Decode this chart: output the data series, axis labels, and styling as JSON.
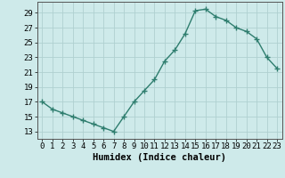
{
  "x": [
    0,
    1,
    2,
    3,
    4,
    5,
    6,
    7,
    8,
    9,
    10,
    11,
    12,
    13,
    14,
    15,
    16,
    17,
    18,
    19,
    20,
    21,
    22,
    23
  ],
  "y": [
    17,
    16,
    15.5,
    15,
    14.5,
    14,
    13.5,
    13,
    15,
    17,
    18.5,
    20,
    22.5,
    24,
    26.2,
    29.3,
    29.5,
    28.5,
    28,
    27,
    26.5,
    25.5,
    23,
    21.5
  ],
  "line_color": "#2e7d6e",
  "marker": "+",
  "marker_size": 4,
  "marker_edge_width": 1.0,
  "bg_color": "#ceeaea",
  "grid_color": "#b0d0d0",
  "xlabel": "Humidex (Indice chaleur)",
  "xlabel_fontsize": 7.5,
  "ylabel_ticks": [
    13,
    15,
    17,
    19,
    21,
    23,
    25,
    27,
    29
  ],
  "ylim": [
    12.0,
    30.5
  ],
  "xlim": [
    -0.5,
    23.5
  ],
  "tick_fontsize": 6.5,
  "line_width": 1.0
}
